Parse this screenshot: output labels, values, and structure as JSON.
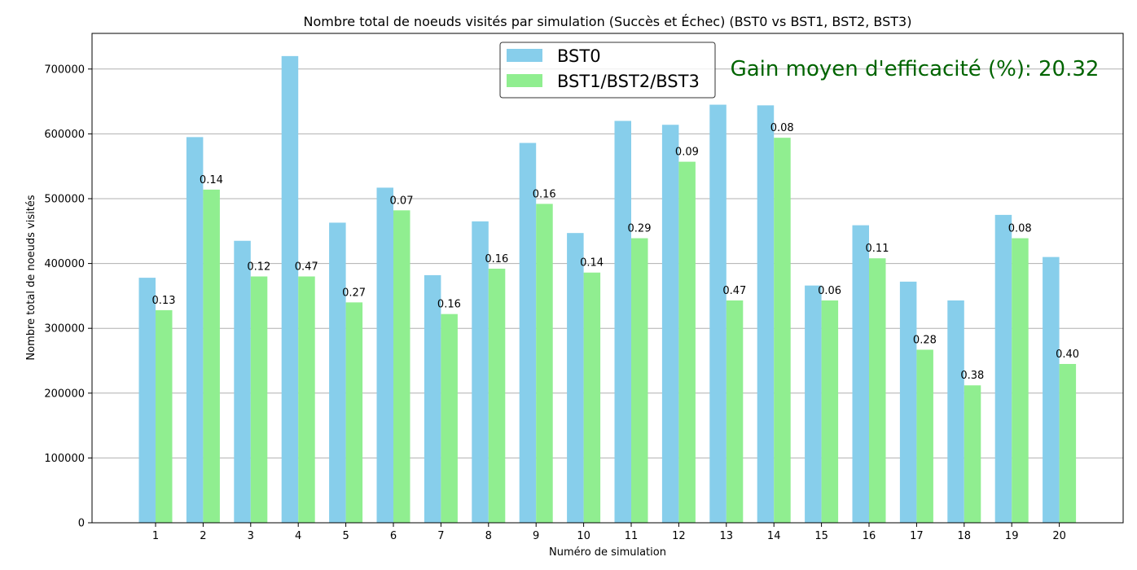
{
  "chart_data": {
    "type": "bar",
    "title": "Nombre total de noeuds visités par simulation (Succès et Échec) (BST0 vs BST1, BST2, BST3)",
    "xlabel": "Numéro de simulation",
    "ylabel": "Nombre total de noeuds visités",
    "categories": [
      "1",
      "2",
      "3",
      "4",
      "5",
      "6",
      "7",
      "8",
      "9",
      "10",
      "11",
      "12",
      "13",
      "14",
      "15",
      "16",
      "17",
      "18",
      "19",
      "20"
    ],
    "ylim": [
      0,
      755000
    ],
    "yticks": [
      0,
      100000,
      200000,
      300000,
      400000,
      500000,
      600000,
      700000
    ],
    "grid": "horizontal",
    "legend_position": "top-center",
    "series": [
      {
        "name": "BST0",
        "color": "#87ceeb",
        "values": [
          378000,
          595000,
          435000,
          720000,
          463000,
          517000,
          382000,
          465000,
          586000,
          447000,
          620000,
          614000,
          645000,
          644000,
          366000,
          459000,
          372000,
          343000,
          475000,
          410000
        ]
      },
      {
        "name": "BST1/BST2/BST3",
        "color": "#90ee90",
        "values": [
          328000,
          514000,
          380000,
          380000,
          340000,
          482000,
          322000,
          392000,
          492000,
          386000,
          439000,
          557000,
          343000,
          594000,
          343000,
          408000,
          267000,
          212000,
          439000,
          245000
        ]
      }
    ],
    "bar_labels": [
      "0.13",
      "0.14",
      "0.12",
      "0.47",
      "0.27",
      "0.07",
      "0.16",
      "0.16",
      "0.16",
      "0.14",
      "0.29",
      "0.09",
      "0.47",
      "0.08",
      "0.06",
      "0.11",
      "0.28",
      "0.38",
      "0.08",
      "0.40"
    ],
    "annotation": {
      "text": "Gain moyen d'efficacité (%): 20.32",
      "color": "#006400"
    }
  }
}
